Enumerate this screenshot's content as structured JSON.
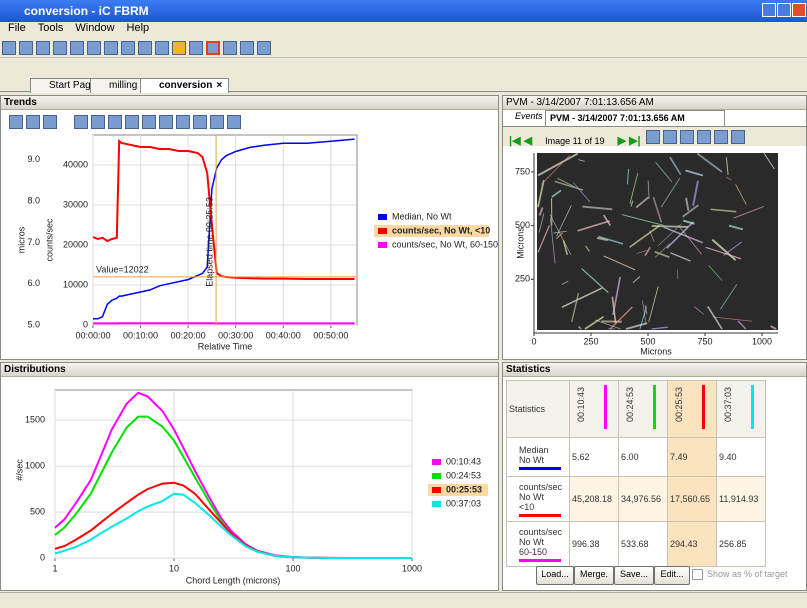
{
  "window": {
    "title": "conversion - iC FBRM",
    "menu": [
      "File",
      "Tools",
      "Window",
      "Help"
    ]
  },
  "tabs": [
    "Start Page",
    "milling",
    "conversion"
  ],
  "trends": {
    "panel_title": "Trends",
    "type": "line",
    "y_label": "micros",
    "y2_label": "counts/sec",
    "x_label": "Relative Time",
    "x": [
      0,
      1,
      2,
      3,
      4,
      5,
      5.5,
      6,
      8,
      10,
      12,
      14,
      16,
      18,
      20,
      22,
      23,
      24,
      25,
      26,
      27,
      28,
      30,
      33,
      36,
      40,
      45,
      50,
      55
    ],
    "xlim": [
      0,
      55.5
    ],
    "xticks": [
      {
        "value": 0,
        "label": "00:00:00"
      },
      {
        "value": 10,
        "label": "00:10:00"
      },
      {
        "value": 20,
        "label": "00:20:00"
      },
      {
        "value": 30,
        "label": "00:30:00"
      },
      {
        "value": 40,
        "label": "00:40:00"
      },
      {
        "value": 50,
        "label": "00:50:00"
      }
    ],
    "ylim": [
      5,
      9.6
    ],
    "yticks": [
      {
        "value": 5,
        "label": "5.0"
      },
      {
        "value": 6,
        "label": "6.0"
      },
      {
        "value": 7,
        "label": "7.0"
      },
      {
        "value": 8,
        "label": "8.0"
      },
      {
        "value": 9,
        "label": "9.0"
      }
    ],
    "y2lim": [
      0,
      47500
    ],
    "y2ticks": [
      0,
      10000,
      20000,
      30000,
      40000
    ],
    "grid": true,
    "series": [
      {
        "name": "Median, No Wt",
        "color": "#0000ff",
        "values": [
          5.15,
          5.15,
          5.2,
          5.5,
          5.6,
          5.65,
          5.7,
          5.7,
          5.75,
          5.8,
          5.85,
          5.95,
          6.0,
          6.05,
          6.1,
          6.2,
          6.25,
          6.4,
          8.3,
          8.8,
          9.0,
          9.1,
          9.2,
          9.3,
          9.35,
          9.4,
          9.4,
          9.45,
          9.5
        ]
      },
      {
        "name": "counts/sec, No Wt, <10",
        "color": "#ff0000",
        "axis": "y2",
        "values": [
          22000,
          21500,
          21800,
          21000,
          21500,
          21800,
          46000,
          45500,
          45000,
          44500,
          44500,
          44000,
          44000,
          43500,
          43500,
          43000,
          42000,
          38000,
          25000,
          13000,
          12200,
          12000,
          11800,
          11700,
          11600,
          11600,
          11500,
          11500,
          11500
        ]
      },
      {
        "name": "counts/sec, No Wt, 60-150",
        "color": "#ff00ff",
        "axis": "y2",
        "values": [
          400,
          400,
          400,
          400,
          400,
          400,
          450,
          450,
          450,
          450,
          450,
          450,
          450,
          450,
          450,
          450,
          450,
          450,
          450,
          400,
          400,
          400,
          400,
          400,
          400,
          400,
          400,
          400,
          400
        ]
      }
    ],
    "cursor": {
      "value": 12022,
      "value_label": "Value=12022",
      "time": 25.88,
      "time_label": "Elapsed time 00:25:53"
    }
  },
  "distributions": {
    "panel_title": "Distributions",
    "type": "line",
    "xlog": true,
    "y_label": "#/sec",
    "x_label": "Chord Length (microns)",
    "x": [
      1,
      1.2,
      1.5,
      2,
      2.5,
      3,
      4,
      5,
      6,
      8,
      10,
      12,
      15,
      20,
      25,
      30,
      40,
      50,
      70,
      100,
      150,
      200,
      300,
      500,
      1000
    ],
    "xlim": [
      1,
      1000
    ],
    "xticks": [
      1,
      10,
      100,
      1000
    ],
    "ylim": [
      0,
      1830
    ],
    "yticks": [
      0,
      500,
      1000,
      1500
    ],
    "grid": true,
    "series": [
      {
        "name": "00:10:43",
        "color": "#ff00ff",
        "values": [
          330,
          420,
          600,
          850,
          1150,
          1400,
          1680,
          1800,
          1760,
          1600,
          1400,
          1200,
          950,
          650,
          430,
          300,
          150,
          80,
          30,
          10,
          3,
          1,
          0,
          0,
          0
        ]
      },
      {
        "name": "00:24:53",
        "color": "#00e000",
        "values": [
          250,
          330,
          480,
          700,
          950,
          1150,
          1420,
          1540,
          1540,
          1430,
          1280,
          1100,
          880,
          600,
          400,
          270,
          130,
          70,
          25,
          8,
          2,
          1,
          0,
          0,
          0
        ]
      },
      {
        "name": "00:25:53",
        "color": "#ff0000",
        "values": [
          100,
          130,
          200,
          300,
          400,
          480,
          600,
          690,
          750,
          810,
          820,
          790,
          700,
          520,
          380,
          270,
          140,
          75,
          25,
          8,
          2,
          0,
          0,
          0,
          0
        ]
      },
      {
        "name": "00:37:03",
        "color": "#00e8e8",
        "values": [
          50,
          80,
          120,
          200,
          280,
          340,
          430,
          510,
          560,
          620,
          700,
          690,
          600,
          460,
          340,
          250,
          130,
          70,
          25,
          8,
          2,
          0,
          0,
          0,
          0
        ]
      }
    ]
  },
  "pvm": {
    "panel_title": "PVM - 3/14/2007 7:01:13.656 AM",
    "tabs": [
      "Events",
      "PVM - 3/14/2007 7:01:13.656 AM"
    ],
    "image_counter": "Image 11 of 19",
    "x_label": "Microns",
    "y_label": "Microns",
    "xlim": [
      0,
      1070
    ],
    "ylim": [
      0,
      838
    ],
    "xticks": [
      0,
      250,
      500,
      750,
      1000
    ],
    "yticks": [
      250,
      500,
      750
    ]
  },
  "statistics": {
    "panel_title": "Statistics",
    "corner": "Statistics",
    "columns": [
      {
        "label": "00:10:43",
        "color": "#ff00ff"
      },
      {
        "label": "00:24:53",
        "color": "#00e000"
      },
      {
        "label": "00:25:53",
        "color": "#ff0000"
      },
      {
        "label": "00:37:03",
        "color": "#00e8e8"
      }
    ],
    "rows": [
      {
        "label": "Median No Wt",
        "color": "#0000ff",
        "cells": [
          "5.62",
          "6.00",
          "7.49",
          "9.40"
        ]
      },
      {
        "label": "counts/sec No Wt <10",
        "color": "#ff0000",
        "cells": [
          "45,208.18",
          "34,976.56",
          "17,560.65",
          "11,914.93"
        ]
      },
      {
        "label": "counts/sec No Wt 60-150",
        "color": "#ff00ff",
        "cells": [
          "996.38",
          "533.68",
          "294.43",
          "256.85"
        ]
      }
    ],
    "buttons": [
      "Load...",
      "Merge.",
      "Save...",
      "Edit..."
    ],
    "checkbox": "Show as % of target"
  }
}
